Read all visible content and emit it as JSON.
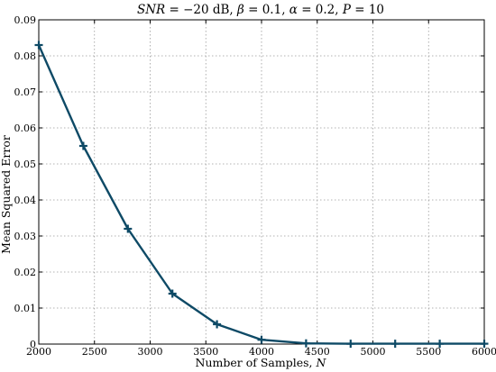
{
  "chart_data": {
    "type": "line",
    "title_parts": [
      "SNR",
      " = −20 dB, ",
      "β",
      " = 0.1, ",
      "α",
      " = 0.2, ",
      "P",
      " = 10"
    ],
    "xlabel": "Number of Samples, ",
    "xlabel_var": "N",
    "ylabel": "Mean Squared Error",
    "xlim": [
      2000,
      6000
    ],
    "ylim": [
      0,
      0.09
    ],
    "x_ticks": [
      2000,
      2500,
      3000,
      3500,
      4000,
      4500,
      5000,
      5500,
      6000
    ],
    "y_ticks": [
      0,
      0.01,
      0.02,
      0.03,
      0.04,
      0.05,
      0.06,
      0.07,
      0.08,
      0.09
    ],
    "grid": true,
    "series": [
      {
        "color": "#0e4a66",
        "marker": "plus",
        "x": [
          2000,
          2400,
          2800,
          3200,
          3600,
          4000,
          4400,
          4800,
          5200,
          5600,
          6000
        ],
        "y": [
          0.083,
          0.055,
          0.032,
          0.014,
          0.0055,
          0.0012,
          0.0002,
          0.0001,
          0.0001,
          0.0001,
          0.0001
        ]
      }
    ]
  }
}
